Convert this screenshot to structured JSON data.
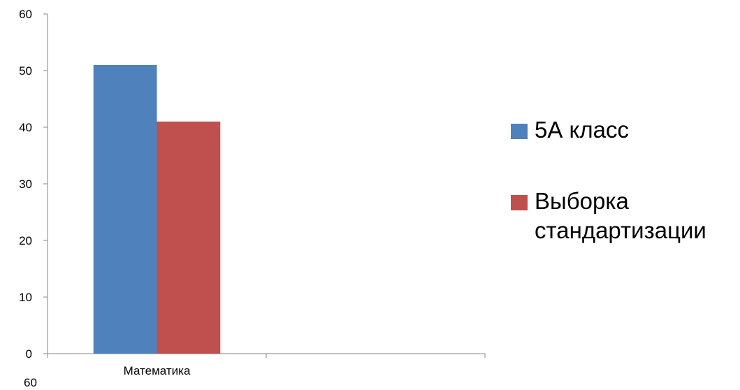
{
  "chart_data": {
    "type": "bar",
    "categories": [
      "Математика",
      ""
    ],
    "series": [
      {
        "name": "5А класс",
        "values": [
          51,
          null
        ],
        "color": "#4F81BD"
      },
      {
        "name": "Выборка стандартизации",
        "values": [
          41,
          null
        ],
        "color": "#C0504D"
      }
    ],
    "ylim": [
      0,
      60
    ],
    "yticks": [
      0,
      10,
      20,
      30,
      40,
      50,
      60
    ],
    "grid": false,
    "legend_position": "right"
  },
  "legend": {
    "item_1": "5А класс",
    "item_2": "Выборка стандартизации"
  },
  "footnote": "60"
}
